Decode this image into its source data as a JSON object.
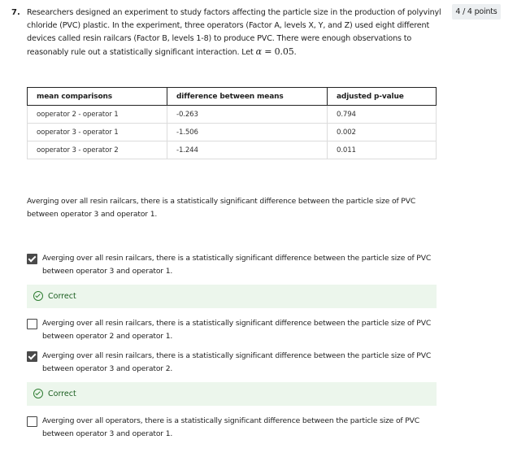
{
  "question": {
    "number": "7.",
    "points": "4 / 4 points",
    "prompt": "Researchers designed an experiment to study factors affecting the particle size in the production of polyvinyl chloride (PVC) plastic. In the experiment, three operators (Factor A, levels X, Y, and Z) used eight different devices called resin railcars (Factor B, levels 1-8) to produce PVC. There were enough observations to reasonably rule out a statistically significant interaction. Let",
    "alpha_symbol": "α",
    "alpha_equals": "=",
    "alpha_value": "0.05",
    "alpha_period": "."
  },
  "table": {
    "headers": [
      "mean comparisons",
      "difference between means",
      "adjusted p-value"
    ],
    "rows": [
      [
        "ooperator 2 - operator 1",
        "-0.263",
        "0.794"
      ],
      [
        "ooperator 3 - operator 1",
        "-1.506",
        "0.002"
      ],
      [
        "ooperator 3 - operator 2",
        "-1.244",
        "0.011"
      ]
    ]
  },
  "statement": "Averging over all resin railcars, there is a statistically significant difference between the particle size of PVC between operator 3 and operator 1.",
  "options": [
    {
      "text": "Averging over all resin railcars, there is a statistically significant difference between the particle size of PVC between operator 3 and operator 1.",
      "checked": true,
      "feedback": "Correct"
    },
    {
      "text": "Averging over all resin railcars, there is a statistically significant difference between the particle size of PVC between operator 2 and operator 1.",
      "checked": false
    },
    {
      "text": "Averging over all resin railcars, there is a statistically significant difference between the particle size of PVC between operator 3 and operator 2.",
      "checked": true,
      "feedback": "Correct"
    },
    {
      "text": "Averging over all operators, there is a statistically significant difference between the particle size of PVC between operator 3 and operator 1.",
      "checked": false
    }
  ]
}
